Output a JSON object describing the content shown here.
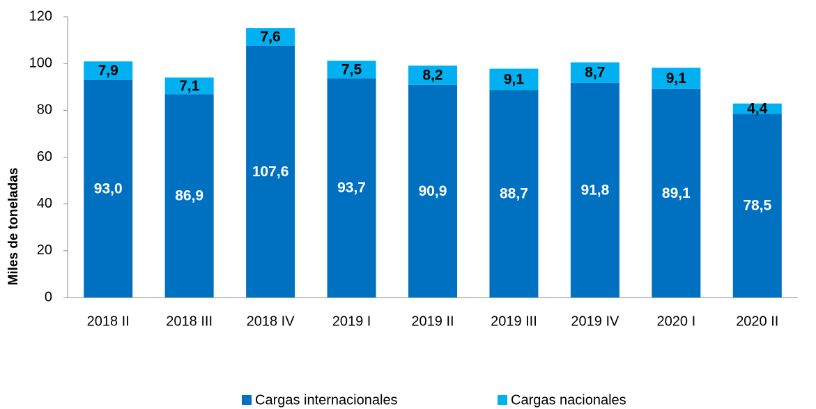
{
  "chart_data": {
    "type": "stacked_bar",
    "ylabel": "Miles de toneladas",
    "categories": [
      "2018 II",
      "2018 III",
      "2018 IV",
      "2019 I",
      "2019 II",
      "2019 III",
      "2019 IV",
      "2020 I",
      "2020 II"
    ],
    "series": [
      {
        "name": "Cargas internacionales",
        "color": "#0070c0",
        "values": [
          93.0,
          86.9,
          107.6,
          93.7,
          90.9,
          88.7,
          91.8,
          89.1,
          78.5
        ],
        "value_labels": [
          "93,0",
          "86,9",
          "107,6",
          "93,7",
          "90,9",
          "88,7",
          "91,8",
          "89,1",
          "78,5"
        ]
      },
      {
        "name": "Cargas nacionales",
        "color": "#00b0f0",
        "values": [
          7.9,
          7.1,
          7.6,
          7.5,
          8.2,
          9.1,
          8.7,
          9.1,
          4.4
        ],
        "value_labels": [
          "7,9",
          "7,1",
          "7,6",
          "7,5",
          "8,2",
          "9,1",
          "8,7",
          "9,1",
          "4,4"
        ]
      }
    ],
    "ylim": [
      0,
      120
    ],
    "yticks": [
      0,
      20,
      40,
      60,
      80,
      100,
      120
    ],
    "legend": "bottom"
  }
}
